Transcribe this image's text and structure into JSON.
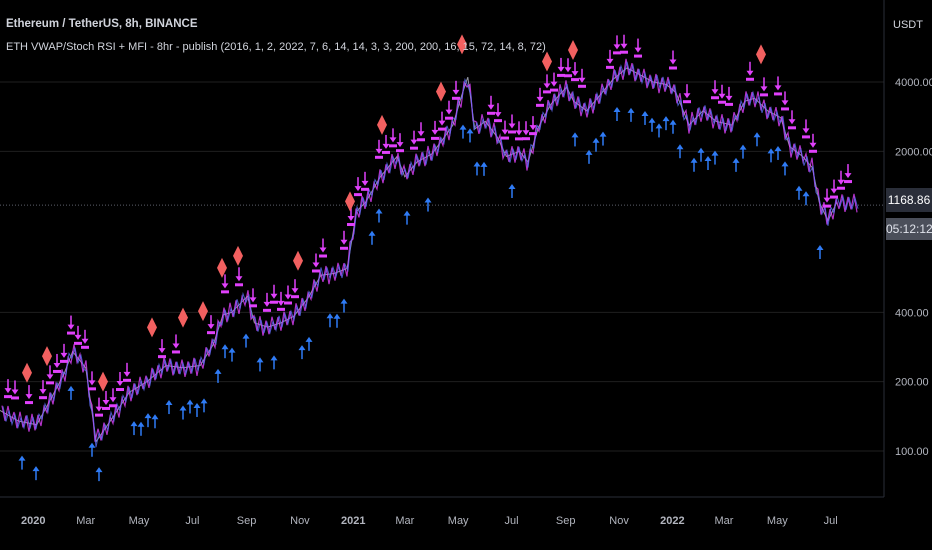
{
  "header": {
    "title": "Ethereum / TetherUS, 8h, BINANCE",
    "indicator": "ETH VWAP/Stoch RSI + MFI - 8hr - publish (2016, 1, 2, 2022, 7, 6, 14, 14, 3, 3, 200, 200, 16, 15, 72, 14, 8, 72)"
  },
  "price_axis": {
    "unit": "USDT",
    "current_price": "1168.86",
    "countdown": "05:12:12"
  },
  "colors": {
    "background": "#000000",
    "price_line": "#9598a1",
    "sell_arrow": "#e040fb",
    "buy_arrow": "#2f7bf5",
    "diamond": "#f26060",
    "grid": "#1f1f1f",
    "axis_text": "#b2b5be"
  },
  "chart_data": {
    "type": "line",
    "yscale": "log",
    "ylim": [
      70,
      6500
    ],
    "yticks": [
      "100.00",
      "200.00",
      "400.00",
      "2000.00",
      "4000.00"
    ],
    "xticks": [
      "2020",
      "Mar",
      "May",
      "Jul",
      "Sep",
      "Nov",
      "2021",
      "Mar",
      "May",
      "Jul",
      "Sep",
      "Nov",
      "2022",
      "Mar",
      "May",
      "Jul"
    ],
    "x_range": [
      "2019-11-24",
      "2022-08-31"
    ],
    "series": [
      {
        "x": [
          "2019-11-24",
          "2019-12-15",
          "2020-01-05",
          "2020-01-20",
          "2020-02-05",
          "2020-02-15",
          "2020-03-01",
          "2020-03-13",
          "2020-04-01",
          "2020-04-20",
          "2020-05-10",
          "2020-06-01",
          "2020-06-20",
          "2020-07-10",
          "2020-07-25",
          "2020-08-05",
          "2020-08-15",
          "2020-09-02",
          "2020-09-10",
          "2020-09-25",
          "2020-10-10",
          "2020-10-25",
          "2020-11-10",
          "2020-11-25",
          "2020-12-10",
          "2020-12-25",
          "2021-01-05",
          "2021-01-15",
          "2021-02-01",
          "2021-02-20",
          "2021-03-01",
          "2021-03-15",
          "2021-04-01",
          "2021-04-15",
          "2021-04-25",
          "2021-05-05",
          "2021-05-12",
          "2021-05-20",
          "2021-06-01",
          "2021-06-15",
          "2021-06-25",
          "2021-07-10",
          "2021-07-20",
          "2021-08-01",
          "2021-08-15",
          "2021-09-02",
          "2021-09-10",
          "2021-09-25",
          "2021-10-10",
          "2021-10-25",
          "2021-11-10",
          "2021-11-25",
          "2021-12-10",
          "2021-12-25",
          "2022-01-05",
          "2022-01-20",
          "2022-02-05",
          "2022-02-20",
          "2022-03-10",
          "2022-03-25",
          "2022-04-05",
          "2022-04-20",
          "2022-05-05",
          "2022-05-15",
          "2022-05-30",
          "2022-06-10",
          "2022-06-18",
          "2022-06-28",
          "2022-07-08"
        ],
        "values": [
          150,
          135,
          130,
          165,
          215,
          270,
          230,
          110,
          140,
          180,
          200,
          235,
          230,
          235,
          290,
          390,
          400,
          470,
          360,
          345,
          360,
          385,
          460,
          580,
          590,
          620,
          1100,
          1200,
          1550,
          1900,
          1550,
          1800,
          1950,
          2300,
          2600,
          3500,
          4200,
          2500,
          2700,
          2300,
          1900,
          2000,
          1800,
          2550,
          3200,
          3800,
          3300,
          3000,
          3500,
          4100,
          4600,
          4300,
          4000,
          3900,
          3600,
          2600,
          3000,
          2700,
          2600,
          3300,
          3400,
          3000,
          2800,
          2100,
          1900,
          1700,
          1200,
          1000,
          1200
        ]
      }
    ],
    "markers": {
      "buy_arrows": "blue upward arrows below price at local lows",
      "sell_arrows": "magenta downward arrows above price at local highs",
      "diamonds": "red diamonds at major tops"
    }
  }
}
